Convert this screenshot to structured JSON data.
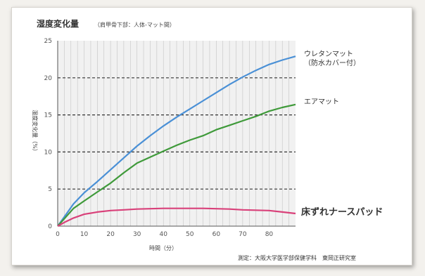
{
  "chart_data": {
    "type": "line",
    "title": "湿度変化量",
    "subtitle": "（肩甲骨下部：人体-マット間）",
    "xlabel": "時間（分）",
    "ylabel": "湿度変化量（%）",
    "xlim": [
      0,
      90
    ],
    "ylim": [
      0,
      25
    ],
    "x_ticks": [
      "0",
      "10",
      "20",
      "30",
      "40",
      "50",
      "60",
      "70",
      "80"
    ],
    "y_ticks": [
      "0",
      "5",
      "10",
      "15",
      "20",
      "25"
    ],
    "grid": "vertical minor lines, dashed horizontal major lines",
    "series": [
      {
        "name": "ウレタンマット（防水カバー付）",
        "label_lines": [
          "ウレタンマット",
          "（防水カバー付）"
        ],
        "color": "#4a90d6",
        "x": [
          0,
          3,
          6,
          10,
          15,
          20,
          25,
          30,
          35,
          40,
          45,
          50,
          55,
          60,
          65,
          70,
          75,
          80,
          85,
          90
        ],
        "y": [
          0,
          1.5,
          3.0,
          4.5,
          6.0,
          7.6,
          9.2,
          10.8,
          12.2,
          13.5,
          14.7,
          15.8,
          16.9,
          18.0,
          19.1,
          20.1,
          21.0,
          21.8,
          22.4,
          22.9
        ]
      },
      {
        "name": "エアマット",
        "label_lines": [
          "エアマット"
        ],
        "color": "#3f9a3a",
        "x": [
          0,
          3,
          6,
          10,
          15,
          20,
          25,
          30,
          35,
          40,
          45,
          50,
          55,
          60,
          65,
          70,
          75,
          80,
          85,
          90
        ],
        "y": [
          0,
          1.2,
          2.4,
          3.4,
          4.6,
          5.8,
          7.2,
          8.5,
          9.3,
          10.1,
          10.9,
          11.6,
          12.2,
          13.0,
          13.6,
          14.2,
          14.8,
          15.5,
          16.0,
          16.4
        ]
      },
      {
        "name": "床ずれナースパッド",
        "label_lines": [
          "床ずれナースパッド"
        ],
        "color": "#d9417a",
        "x": [
          0,
          3,
          6,
          10,
          15,
          20,
          25,
          30,
          35,
          40,
          45,
          50,
          55,
          60,
          65,
          70,
          75,
          80,
          85,
          90
        ],
        "y": [
          0,
          0.6,
          1.1,
          1.6,
          1.9,
          2.1,
          2.2,
          2.3,
          2.35,
          2.4,
          2.4,
          2.4,
          2.4,
          2.35,
          2.3,
          2.2,
          2.15,
          2.1,
          1.9,
          1.7
        ]
      }
    ],
    "footnote": "測定：大阪大学医学部保健学科　東岡正研究室"
  }
}
